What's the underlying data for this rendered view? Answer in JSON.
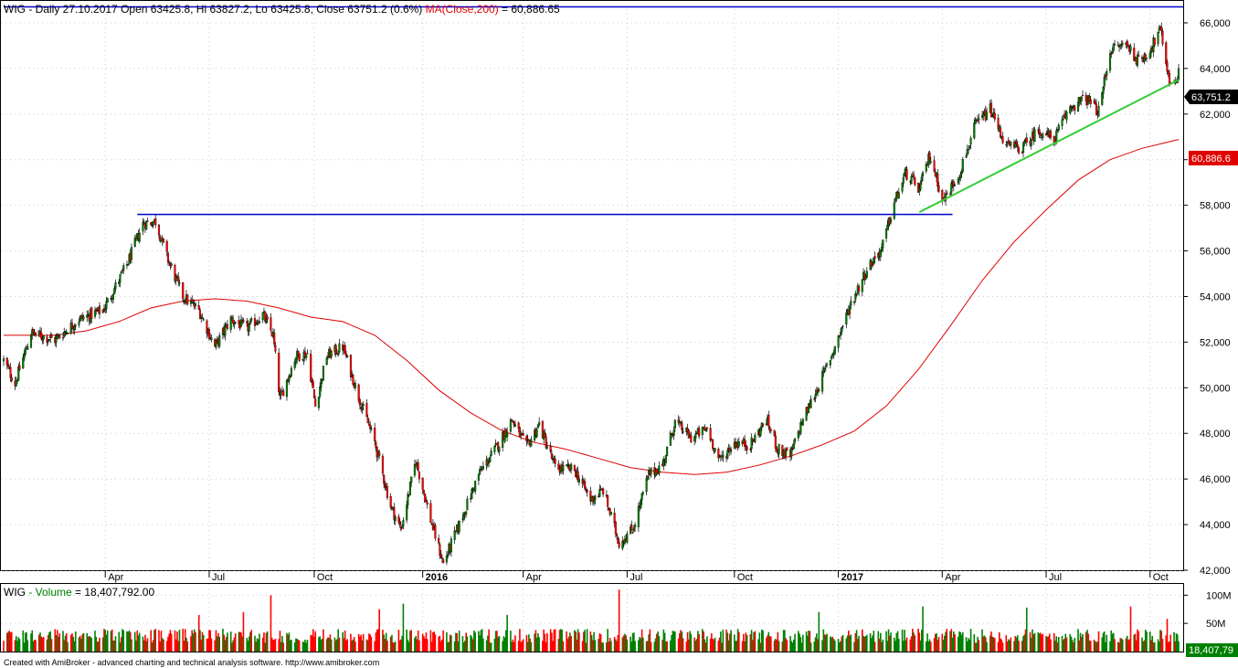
{
  "header": {
    "symbol": "WIG",
    "info": " - Daily 27.10.2017 Open 63425.8, Hi 63827.2, Lo 63425.8, Close 63751.2 (0.6%) ",
    "ma_label": "MA(Close,200)",
    "ma_value": " = 60,886.65"
  },
  "volume_header": {
    "symbol": "WIG",
    "label": " - Volume",
    "value": " = 18,407,792.00"
  },
  "footer": "Created with AmiBroker - advanced charting and technical analysis software. http://www.amibroker.com",
  "price_tag": "63,751.2",
  "ma_tag": "60,886.6",
  "volume_tag": "18,407,79",
  "colors": {
    "up": "#008000",
    "down": "#ff0000",
    "ma": "#e00000",
    "hline": "#0000cc",
    "trend": "#33cc33",
    "grid": "#c8c8c8"
  },
  "chart_data": [
    {
      "type": "candlestick",
      "title": "WIG - Daily 27.10.2017",
      "ylim": [
        42000,
        66600
      ],
      "yticks": [
        42000,
        44000,
        46000,
        48000,
        50000,
        52000,
        54000,
        56000,
        58000,
        60000,
        62000,
        64000,
        66000
      ],
      "ytick_labels": [
        "42,000",
        "44,000",
        "46,000",
        "48,000",
        "50,000",
        "52,000",
        "54,000",
        "56,000",
        "58,000",
        "60,000",
        "62,000",
        "64,000",
        "66,000"
      ],
      "x_start": "2015-01-02",
      "x_end": "2017-10-27",
      "xticks": [
        {
          "date": "2015-04-01",
          "label": "Apr",
          "bold": false
        },
        {
          "date": "2015-07-01",
          "label": "Jul",
          "bold": false
        },
        {
          "date": "2015-10-01",
          "label": "Oct",
          "bold": false
        },
        {
          "date": "2016-01-04",
          "label": "2016",
          "bold": true
        },
        {
          "date": "2016-04-01",
          "label": "Apr",
          "bold": false
        },
        {
          "date": "2016-07-01",
          "label": "Jul",
          "bold": false
        },
        {
          "date": "2016-10-03",
          "label": "Oct",
          "bold": false
        },
        {
          "date": "2017-01-02",
          "label": "2017",
          "bold": true
        },
        {
          "date": "2017-04-03",
          "label": "Apr",
          "bold": false
        },
        {
          "date": "2017-07-03",
          "label": "Jul",
          "bold": false
        },
        {
          "date": "2017-10-02",
          "label": "Oct",
          "bold": false
        }
      ],
      "close_path": [
        [
          "2015-01-02",
          51200
        ],
        [
          "2015-01-12",
          50200
        ],
        [
          "2015-01-26",
          52400
        ],
        [
          "2015-02-16",
          52100
        ],
        [
          "2015-03-09",
          53000
        ],
        [
          "2015-03-30",
          53400
        ],
        [
          "2015-04-20",
          55400
        ],
        [
          "2015-05-04",
          57200
        ],
        [
          "2015-05-15",
          57300
        ],
        [
          "2015-05-26",
          55600
        ],
        [
          "2015-06-08",
          54000
        ],
        [
          "2015-06-22",
          53400
        ],
        [
          "2015-07-06",
          51800
        ],
        [
          "2015-07-20",
          53000
        ],
        [
          "2015-08-03",
          52600
        ],
        [
          "2015-08-17",
          53200
        ],
        [
          "2015-08-26",
          52300
        ],
        [
          "2015-09-01",
          49500
        ],
        [
          "2015-09-15",
          51400
        ],
        [
          "2015-09-25",
          51500
        ],
        [
          "2015-10-02",
          49200
        ],
        [
          "2015-10-12",
          51400
        ],
        [
          "2015-10-26",
          51800
        ],
        [
          "2015-11-09",
          49600
        ],
        [
          "2015-11-23",
          47600
        ],
        [
          "2015-12-07",
          44800
        ],
        [
          "2015-12-16",
          43800
        ],
        [
          "2015-12-29",
          46800
        ],
        [
          "2016-01-11",
          44200
        ],
        [
          "2016-01-22",
          42300
        ],
        [
          "2016-02-05",
          44000
        ],
        [
          "2016-02-22",
          46200
        ],
        [
          "2016-03-10",
          47500
        ],
        [
          "2016-03-22",
          48600
        ],
        [
          "2016-04-04",
          47400
        ],
        [
          "2016-04-15",
          48400
        ],
        [
          "2016-04-29",
          46500
        ],
        [
          "2016-05-16",
          46400
        ],
        [
          "2016-05-30",
          45100
        ],
        [
          "2016-06-10",
          45500
        ],
        [
          "2016-06-24",
          43200
        ],
        [
          "2016-07-06",
          43800
        ],
        [
          "2016-07-20",
          46200
        ],
        [
          "2016-08-01",
          46600
        ],
        [
          "2016-08-12",
          48500
        ],
        [
          "2016-08-26",
          47800
        ],
        [
          "2016-09-09",
          48200
        ],
        [
          "2016-09-20",
          46800
        ],
        [
          "2016-10-03",
          47600
        ],
        [
          "2016-10-17",
          47500
        ],
        [
          "2016-10-31",
          48600
        ],
        [
          "2016-11-10",
          47300
        ],
        [
          "2016-11-21",
          47000
        ],
        [
          "2016-12-01",
          48500
        ],
        [
          "2016-12-15",
          50000
        ],
        [
          "2016-12-30",
          51800
        ],
        [
          "2017-01-13",
          53700
        ],
        [
          "2017-01-27",
          55200
        ],
        [
          "2017-02-09",
          56100
        ],
        [
          "2017-02-20",
          58100
        ],
        [
          "2017-03-02",
          59400
        ],
        [
          "2017-03-14",
          58700
        ],
        [
          "2017-03-23",
          60200
        ],
        [
          "2017-04-04",
          58200
        ],
        [
          "2017-04-18",
          59400
        ],
        [
          "2017-05-02",
          61500
        ],
        [
          "2017-05-15",
          62200
        ],
        [
          "2017-05-29",
          60600
        ],
        [
          "2017-06-12",
          60500
        ],
        [
          "2017-06-26",
          61300
        ],
        [
          "2017-07-10",
          60900
        ],
        [
          "2017-07-24",
          62300
        ],
        [
          "2017-08-07",
          62700
        ],
        [
          "2017-08-18",
          62100
        ],
        [
          "2017-08-28",
          64800
        ],
        [
          "2017-09-11",
          65100
        ],
        [
          "2017-09-22",
          64300
        ],
        [
          "2017-10-02",
          64800
        ],
        [
          "2017-10-11",
          65700
        ],
        [
          "2017-10-20",
          63200
        ],
        [
          "2017-10-27",
          63751
        ]
      ],
      "ma200": {
        "name": "MA(Close,200)",
        "points": [
          [
            "2015-01-02",
            52300
          ],
          [
            "2015-02-16",
            52300
          ],
          [
            "2015-03-16",
            52500
          ],
          [
            "2015-04-13",
            52900
          ],
          [
            "2015-05-11",
            53500
          ],
          [
            "2015-06-08",
            53800
          ],
          [
            "2015-07-06",
            53900
          ],
          [
            "2015-08-03",
            53800
          ],
          [
            "2015-08-31",
            53500
          ],
          [
            "2015-09-28",
            53100
          ],
          [
            "2015-10-26",
            52900
          ],
          [
            "2015-11-23",
            52300
          ],
          [
            "2015-12-21",
            51200
          ],
          [
            "2016-01-18",
            49900
          ],
          [
            "2016-02-15",
            48900
          ],
          [
            "2016-03-14",
            48100
          ],
          [
            "2016-04-11",
            47600
          ],
          [
            "2016-05-09",
            47300
          ],
          [
            "2016-06-06",
            46900
          ],
          [
            "2016-07-04",
            46500
          ],
          [
            "2016-08-01",
            46300
          ],
          [
            "2016-08-29",
            46200
          ],
          [
            "2016-09-26",
            46300
          ],
          [
            "2016-10-24",
            46600
          ],
          [
            "2016-11-21",
            47000
          ],
          [
            "2016-12-19",
            47500
          ],
          [
            "2017-01-16",
            48100
          ],
          [
            "2017-02-13",
            49200
          ],
          [
            "2017-03-13",
            50800
          ],
          [
            "2017-04-10",
            52700
          ],
          [
            "2017-05-08",
            54700
          ],
          [
            "2017-06-05",
            56400
          ],
          [
            "2017-07-03",
            57800
          ],
          [
            "2017-07-31",
            59100
          ],
          [
            "2017-08-28",
            60000
          ],
          [
            "2017-09-25",
            60500
          ],
          [
            "2017-10-27",
            60886
          ]
        ]
      },
      "hlines": [
        {
          "value": 66700,
          "from": "2015-01-02",
          "to": "2017-10-27"
        },
        {
          "value": 57600,
          "from": "2015-04-29",
          "to": "2017-04-12"
        }
      ],
      "trendline": {
        "from": [
          "2017-03-14",
          57700
        ],
        "to": [
          "2017-10-27",
          63500
        ]
      }
    },
    {
      "type": "bar",
      "title": "WIG - Volume",
      "ylim": [
        0,
        120
      ],
      "unit": "M",
      "yticks": [
        50,
        100
      ],
      "ytick_labels": [
        "50M",
        "100M"
      ],
      "baseline_mean": 28,
      "spikes": [
        [
          "2015-06-22",
          65
        ],
        [
          "2015-07-31",
          70
        ],
        [
          "2015-08-24",
          100
        ],
        [
          "2015-11-27",
          75
        ],
        [
          "2015-12-18",
          85
        ],
        [
          "2016-03-18",
          65
        ],
        [
          "2016-06-24",
          110
        ],
        [
          "2016-12-16",
          70
        ],
        [
          "2017-03-17",
          80
        ],
        [
          "2017-06-16",
          78
        ],
        [
          "2017-09-15",
          80
        ],
        [
          "2017-10-17",
          58
        ]
      ],
      "last_value": 18.4
    }
  ]
}
